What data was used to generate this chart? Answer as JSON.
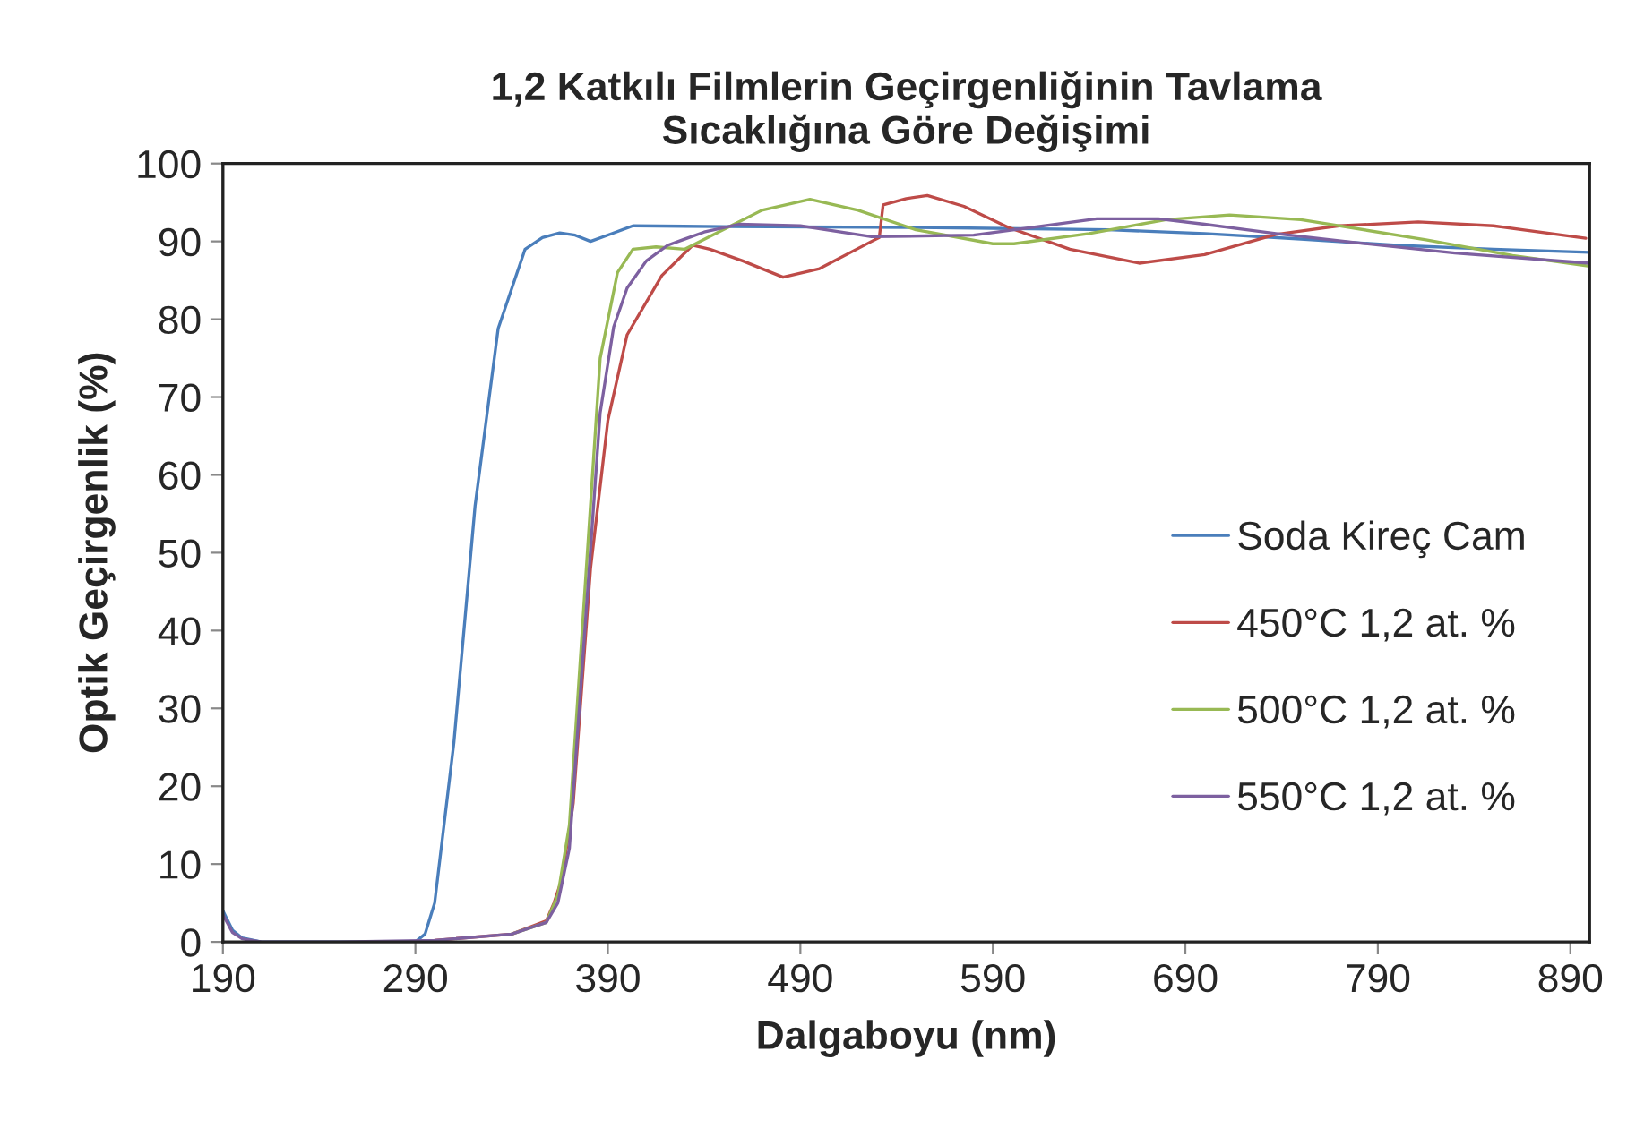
{
  "chart_data": {
    "type": "line",
    "title": "1,2 Katkılı Filmlerin Geçirgenliğinin Tavlama\nSıcaklığına Göre Değişimi",
    "xlabel": "Dalgaboyu (nm)",
    "ylabel": "Optik Geçirgenlik (%)",
    "xlim": [
      190,
      900
    ],
    "xticks": [
      190,
      290,
      390,
      490,
      590,
      690,
      790,
      890
    ],
    "ylim": [
      0,
      100
    ],
    "yticks": [
      0,
      10,
      20,
      30,
      40,
      50,
      60,
      70,
      80,
      90,
      100
    ],
    "grid": false,
    "legend": "right",
    "marker": "none",
    "line_style": "solid",
    "series": [
      {
        "name": "Soda Kireç Cam",
        "color": "#4a7ebb",
        "x": [
          190,
          195,
          200,
          210,
          250,
          290,
          295,
          300,
          310,
          321,
          333,
          347,
          356,
          365,
          373,
          381,
          392,
          403,
          450,
          550,
          650,
          700,
          750,
          800,
          850,
          900
        ],
        "values": [
          4,
          1.5,
          0.5,
          0,
          0,
          0,
          1,
          5,
          25.6,
          56,
          78.8,
          89,
          90.5,
          91.1,
          90.8,
          90,
          91,
          92,
          91.9,
          91.8,
          91.5,
          91,
          90.3,
          89.5,
          89,
          88.6
        ]
      },
      {
        "name": "450°C 1,2 at. %",
        "color": "#be4b48",
        "x": [
          300,
          340,
          358,
          362,
          366,
          372,
          381,
          390,
          400,
          418,
          434,
          443,
          460,
          481,
          500,
          527,
          531,
          533,
          545,
          556,
          575,
          598,
          630,
          666,
          700,
          737,
          770,
          811,
          850,
          898
        ],
        "values": [
          0.2,
          1,
          2.7,
          5,
          8,
          17.8,
          48,
          67,
          78,
          85.6,
          89.5,
          89,
          87.5,
          85.4,
          86.5,
          90,
          90.5,
          94.7,
          95.5,
          95.9,
          94.5,
          91.8,
          89,
          87.2,
          88.3,
          90.9,
          92,
          92.5,
          92,
          90.4
        ]
      },
      {
        "name": "500°C 1,2 at. %",
        "color": "#98b954",
        "x": [
          340,
          358,
          364,
          370,
          378,
          386,
          395,
          403,
          415,
          430,
          450,
          470,
          495,
          520,
          550,
          590,
          601,
          640,
          680,
          713,
          750,
          815,
          860,
          900
        ],
        "values": [
          1,
          2.5,
          6,
          15,
          45,
          75,
          86,
          89,
          89.3,
          89,
          91.5,
          94,
          95.4,
          94,
          91.5,
          89.7,
          89.7,
          91,
          92.8,
          93.4,
          92.8,
          90.2,
          88.2,
          86.8
        ]
      },
      {
        "name": "550°C 1,2 at. %",
        "color": "#7d60a0",
        "x": [
          190,
          195,
          200,
          210,
          250,
          300,
          340,
          358,
          364,
          370,
          378,
          386,
          393,
          400,
          410,
          421,
          440,
          458,
          490,
          527,
          580,
          644,
          676,
          700,
          737,
          780,
          830,
          900
        ],
        "values": [
          3.5,
          1.2,
          0.4,
          0,
          0,
          0.2,
          1,
          2.5,
          5,
          12,
          40,
          68,
          79,
          84,
          87.5,
          89.5,
          91.2,
          92.2,
          92,
          90.6,
          90.8,
          92.9,
          92.9,
          92.2,
          91,
          89.8,
          88.5,
          87.2
        ]
      }
    ]
  }
}
